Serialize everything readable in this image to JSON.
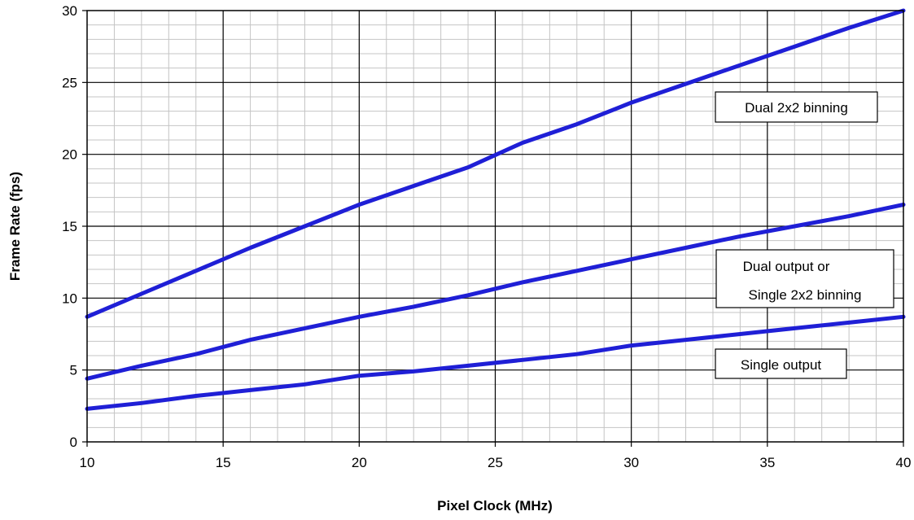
{
  "chart_data": {
    "type": "line",
    "title": "",
    "xlabel": "Pixel Clock (MHz)",
    "ylabel": "Frame Rate (fps)",
    "xlim": [
      10,
      40
    ],
    "ylim": [
      0,
      30
    ],
    "x_ticks": [
      10,
      15,
      20,
      25,
      30,
      35,
      40
    ],
    "y_ticks": [
      0,
      5,
      10,
      15,
      20,
      25,
      30
    ],
    "grid": true,
    "minor_grid": true,
    "line_color": "#1f1fd6",
    "x": [
      10,
      12,
      14,
      16,
      18,
      20,
      22,
      24,
      26,
      28,
      30,
      32,
      34,
      36,
      38,
      40
    ],
    "series": [
      {
        "values": [
          8.7,
          10.3,
          11.9,
          13.5,
          15.0,
          16.5,
          17.8,
          19.1,
          20.8,
          22.1,
          23.6,
          24.9,
          26.2,
          27.5,
          28.8,
          30.0
        ]
      },
      {
        "values": [
          4.4,
          5.3,
          6.1,
          7.1,
          7.9,
          8.7,
          9.4,
          10.2,
          11.1,
          11.9,
          12.7,
          13.5,
          14.3,
          15.0,
          15.7,
          16.5
        ]
      },
      {
        "values": [
          2.3,
          2.7,
          3.2,
          3.6,
          4.0,
          4.6,
          4.9,
          5.3,
          5.7,
          6.1,
          6.7,
          7.1,
          7.5,
          7.9,
          8.3,
          8.7
        ]
      }
    ],
    "annotations": [
      {
        "lines": [
          "Dual 2x2 binning"
        ]
      },
      {
        "lines": [
          "Dual output or",
          "Single 2x2 binning"
        ]
      },
      {
        "lines": [
          "Single output"
        ]
      }
    ]
  }
}
